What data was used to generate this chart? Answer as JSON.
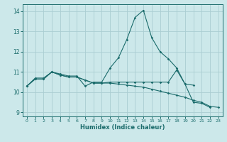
{
  "title": "",
  "xlabel": "Humidex (Indice chaleur)",
  "background_color": "#cce8ea",
  "grid_color": "#aacdd2",
  "line_color": "#1a6b6b",
  "xlim": [
    -0.5,
    23.5
  ],
  "ylim": [
    8.8,
    14.35
  ],
  "xticks": [
    0,
    1,
    2,
    3,
    4,
    5,
    6,
    7,
    8,
    9,
    10,
    11,
    12,
    13,
    14,
    15,
    16,
    17,
    18,
    19,
    20,
    21,
    22,
    23
  ],
  "yticks": [
    9,
    10,
    11,
    12,
    13,
    14
  ],
  "curve1_x": [
    0,
    1,
    2,
    3,
    4,
    5,
    6,
    7,
    8,
    9,
    10,
    11,
    12,
    13,
    14,
    15,
    16,
    17,
    18,
    19,
    20
  ],
  "curve1_y": [
    10.3,
    10.7,
    10.7,
    11.0,
    10.9,
    10.8,
    10.8,
    10.3,
    10.5,
    10.5,
    11.2,
    11.7,
    12.6,
    13.7,
    14.05,
    12.7,
    12.0,
    11.65,
    11.2,
    10.4,
    10.35
  ],
  "curve2_x": [
    0,
    1,
    2,
    3,
    4,
    5,
    6,
    7,
    8,
    9,
    10,
    11,
    12,
    13,
    14,
    15,
    16,
    17,
    18,
    19,
    20,
    21,
    22
  ],
  "curve2_y": [
    10.3,
    10.65,
    10.65,
    11.0,
    10.85,
    10.75,
    10.75,
    10.6,
    10.45,
    10.45,
    10.5,
    10.5,
    10.5,
    10.5,
    10.5,
    10.5,
    10.5,
    10.5,
    11.1,
    10.4,
    9.5,
    9.45,
    9.25
  ],
  "curve3_x": [
    0,
    1,
    2,
    3,
    4,
    5,
    6,
    7,
    8,
    9,
    10,
    11,
    12,
    13,
    14,
    15,
    16,
    17,
    18,
    19,
    20,
    21,
    22,
    23
  ],
  "curve3_y": [
    10.3,
    10.65,
    10.65,
    11.0,
    10.85,
    10.75,
    10.75,
    10.6,
    10.45,
    10.45,
    10.45,
    10.4,
    10.35,
    10.3,
    10.25,
    10.15,
    10.05,
    9.95,
    9.85,
    9.75,
    9.6,
    9.5,
    9.3,
    9.25
  ]
}
